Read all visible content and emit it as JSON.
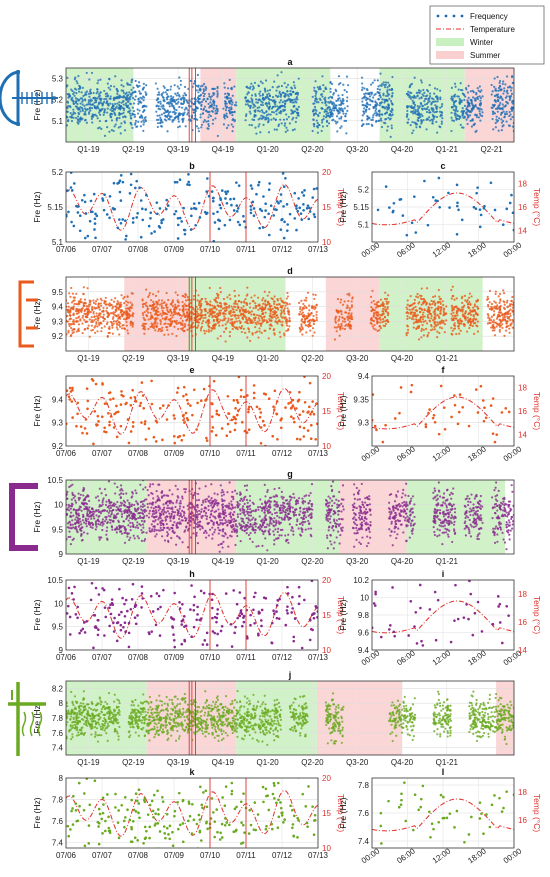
{
  "legend": {
    "items": [
      {
        "label": "Frequency",
        "kind": "dots",
        "color": "#1f6fb5"
      },
      {
        "label": "Temperature",
        "kind": "dashdot",
        "color": "#e0302a"
      },
      {
        "label": "Winter",
        "kind": "patch",
        "color": "#c9f0c0"
      },
      {
        "label": "Summer",
        "kind": "patch",
        "color": "#f9cfd0"
      }
    ]
  },
  "colors": {
    "blue": "#1f6fb5",
    "orange": "#ea5a1c",
    "purple": "#8a2a8e",
    "green": "#6aaa20",
    "temp": "#e0302a",
    "vline": "#e0302a"
  },
  "quarter_ticks": [
    "Q1-19",
    "Q2-19",
    "Q3-19",
    "Q4-19",
    "Q1-20",
    "Q2-20",
    "Q3-20",
    "Q4-20",
    "Q1-21",
    "Q2-21"
  ],
  "week_ticks": [
    "07/06",
    "07/07",
    "07/08",
    "07/09",
    "07/10",
    "07/11",
    "07/12",
    "07/13"
  ],
  "day_ticks": [
    "00:00",
    "06:00",
    "12:00",
    "18:00",
    "00:00"
  ],
  "chart_data": [
    {
      "panel": "a",
      "type": "scatter",
      "ylabel": "Fre (Hz)",
      "ylim": [
        5.0,
        5.35
      ],
      "yticks": [
        5.1,
        5.2,
        5.3
      ],
      "color": "blue",
      "xaxis": "quarters",
      "xticks_shown": 10,
      "seasons": [
        {
          "season": "Winter",
          "from": 0.0,
          "to": 0.15
        },
        {
          "season": "Summer",
          "from": 0.3,
          "to": 0.38
        },
        {
          "season": "Winter",
          "from": 0.38,
          "to": 0.59
        },
        {
          "season": "Winter",
          "from": 0.7,
          "to": 0.89
        },
        {
          "season": "Summer",
          "from": 0.89,
          "to": 1.0
        }
      ],
      "gaps": [
        [
          0.18,
          0.2
        ],
        [
          0.34,
          0.35
        ],
        [
          0.38,
          0.4
        ],
        [
          0.52,
          0.55
        ],
        [
          0.63,
          0.66
        ],
        [
          0.73,
          0.76
        ],
        [
          0.84,
          0.86
        ],
        [
          0.93,
          0.95
        ]
      ],
      "band": [
        5.05,
        5.3
      ]
    },
    {
      "panel": "b",
      "type": "scatter+line",
      "ylabel": "Fre (Hz)",
      "ylabel2": "Temp (°C)",
      "ylim": [
        5.1,
        5.2
      ],
      "yticks": [
        5.1,
        5.15,
        5.2
      ],
      "ylim2": [
        10,
        20
      ],
      "yticks2": [
        10,
        15,
        20
      ],
      "color": "blue",
      "xaxis": "week"
    },
    {
      "panel": "c",
      "type": "scatter+line",
      "ylabel": "Fre (Hz)",
      "ylabel2": "Temp (°C)",
      "ylim": [
        5.05,
        5.25
      ],
      "yticks": [
        5.1,
        5.15,
        5.2
      ],
      "ylim2": [
        13,
        19
      ],
      "yticks2": [
        14,
        16,
        18
      ],
      "color": "blue",
      "xaxis": "day"
    },
    {
      "panel": "d",
      "type": "scatter",
      "ylabel": "Fre (Hz)",
      "ylim": [
        9.1,
        9.6
      ],
      "yticks": [
        9.2,
        9.3,
        9.4,
        9.5
      ],
      "color": "orange",
      "xaxis": "quarters",
      "xticks_shown": 9,
      "seasons": [
        {
          "season": "Summer",
          "from": 0.13,
          "to": 0.27
        },
        {
          "season": "Winter",
          "from": 0.27,
          "to": 0.49
        },
        {
          "season": "Summer",
          "from": 0.58,
          "to": 0.7
        },
        {
          "season": "Winter",
          "from": 0.7,
          "to": 0.93
        }
      ],
      "gaps": [
        [
          0.15,
          0.17
        ],
        [
          0.5,
          0.52
        ],
        [
          0.56,
          0.6
        ],
        [
          0.64,
          0.68
        ],
        [
          0.72,
          0.76
        ],
        [
          0.85,
          0.86
        ],
        [
          0.92,
          0.94
        ]
      ],
      "band": [
        9.2,
        9.5
      ]
    },
    {
      "panel": "e",
      "type": "scatter+line",
      "ylabel": "Fre (Hz)",
      "ylabel2": "Temp (°C)",
      "ylim": [
        9.2,
        9.5
      ],
      "yticks": [
        9.2,
        9.3,
        9.4
      ],
      "ylim2": [
        10,
        20
      ],
      "yticks2": [
        10,
        15,
        20
      ],
      "color": "orange",
      "xaxis": "week"
    },
    {
      "panel": "f",
      "type": "scatter+line",
      "ylabel": "Fre (Hz)",
      "ylabel2": "Temp (°C)",
      "ylim": [
        9.25,
        9.4
      ],
      "yticks": [
        9.3,
        9.35,
        9.4
      ],
      "ylim2": [
        13,
        19
      ],
      "yticks2": [
        14,
        16,
        18
      ],
      "color": "orange",
      "xaxis": "day"
    },
    {
      "panel": "g",
      "type": "scatter",
      "ylabel": "Fre (Hz)",
      "ylim": [
        9.0,
        10.5
      ],
      "yticks": [
        9.0,
        9.5,
        10.0,
        10.5
      ],
      "color": "purple",
      "xaxis": "quarters",
      "xticks_shown": 9,
      "seasons": [
        {
          "season": "Winter",
          "from": 0.0,
          "to": 0.18
        },
        {
          "season": "Summer",
          "from": 0.18,
          "to": 0.38
        },
        {
          "season": "Winter",
          "from": 0.38,
          "to": 0.61
        },
        {
          "season": "Summer",
          "from": 0.61,
          "to": 0.76
        },
        {
          "season": "Winter",
          "from": 0.76,
          "to": 0.98
        }
      ],
      "gaps": [
        [
          0.55,
          0.58
        ],
        [
          0.62,
          0.64
        ],
        [
          0.68,
          0.72
        ],
        [
          0.78,
          0.82
        ],
        [
          0.87,
          0.89
        ],
        [
          0.93,
          0.95
        ]
      ],
      "band": [
        9.2,
        10.4
      ]
    },
    {
      "panel": "h",
      "type": "scatter+line",
      "ylabel": "Fre (Hz)",
      "ylabel2": "Temp (°C)",
      "ylim": [
        9.0,
        10.5
      ],
      "yticks": [
        9.0,
        9.5,
        10.0,
        10.5
      ],
      "ylim2": [
        10,
        20
      ],
      "yticks2": [
        10,
        15,
        20
      ],
      "color": "purple",
      "xaxis": "week"
    },
    {
      "panel": "i",
      "type": "scatter+line",
      "ylabel": "Fre (Hz)",
      "ylabel2": "Temp (°C)",
      "ylim": [
        9.4,
        10.2
      ],
      "yticks": [
        9.4,
        9.6,
        9.8,
        10.0,
        10.2
      ],
      "ylim2": [
        14,
        19
      ],
      "yticks2": [
        14,
        16,
        18
      ],
      "color": "purple",
      "xaxis": "day"
    },
    {
      "panel": "j",
      "type": "scatter",
      "ylabel": "Fre (Hz)",
      "ylim": [
        7.3,
        8.3
      ],
      "yticks": [
        7.4,
        7.6,
        7.8,
        8.0,
        8.2
      ],
      "color": "green",
      "xaxis": "quarters",
      "xticks_shown": 9,
      "seasons": [
        {
          "season": "Winter",
          "from": 0.0,
          "to": 0.18
        },
        {
          "season": "Summer",
          "from": 0.18,
          "to": 0.38
        },
        {
          "season": "Winter",
          "from": 0.38,
          "to": 0.56
        },
        {
          "season": "Summer",
          "from": 0.56,
          "to": 0.75
        },
        {
          "season": "Summer",
          "from": 0.96,
          "to": 1.0
        }
      ],
      "gaps": [
        [
          0.12,
          0.14
        ],
        [
          0.48,
          0.5
        ],
        [
          0.54,
          0.58
        ],
        [
          0.62,
          0.72
        ],
        [
          0.78,
          0.82
        ],
        [
          0.86,
          0.9
        ]
      ],
      "band": [
        7.5,
        8.1
      ]
    },
    {
      "panel": "k",
      "type": "scatter+line",
      "ylabel": "Fre (Hz)",
      "ylabel2": "Temp (°C)",
      "ylim": [
        7.35,
        8.0
      ],
      "yticks": [
        7.4,
        7.6,
        7.8,
        8.0
      ],
      "ylim2": [
        10,
        20
      ],
      "yticks2": [
        10,
        15,
        20
      ],
      "color": "green",
      "xaxis": "week"
    },
    {
      "panel": "l",
      "type": "scatter+line",
      "ylabel": "Fre (Hz)",
      "ylabel2": "Temp (°C)",
      "ylim": [
        7.35,
        7.85
      ],
      "yticks": [
        7.4,
        7.6,
        7.8
      ],
      "ylim2": [
        14,
        19
      ],
      "yticks2": [
        16,
        18
      ],
      "color": "green",
      "xaxis": "day"
    }
  ]
}
